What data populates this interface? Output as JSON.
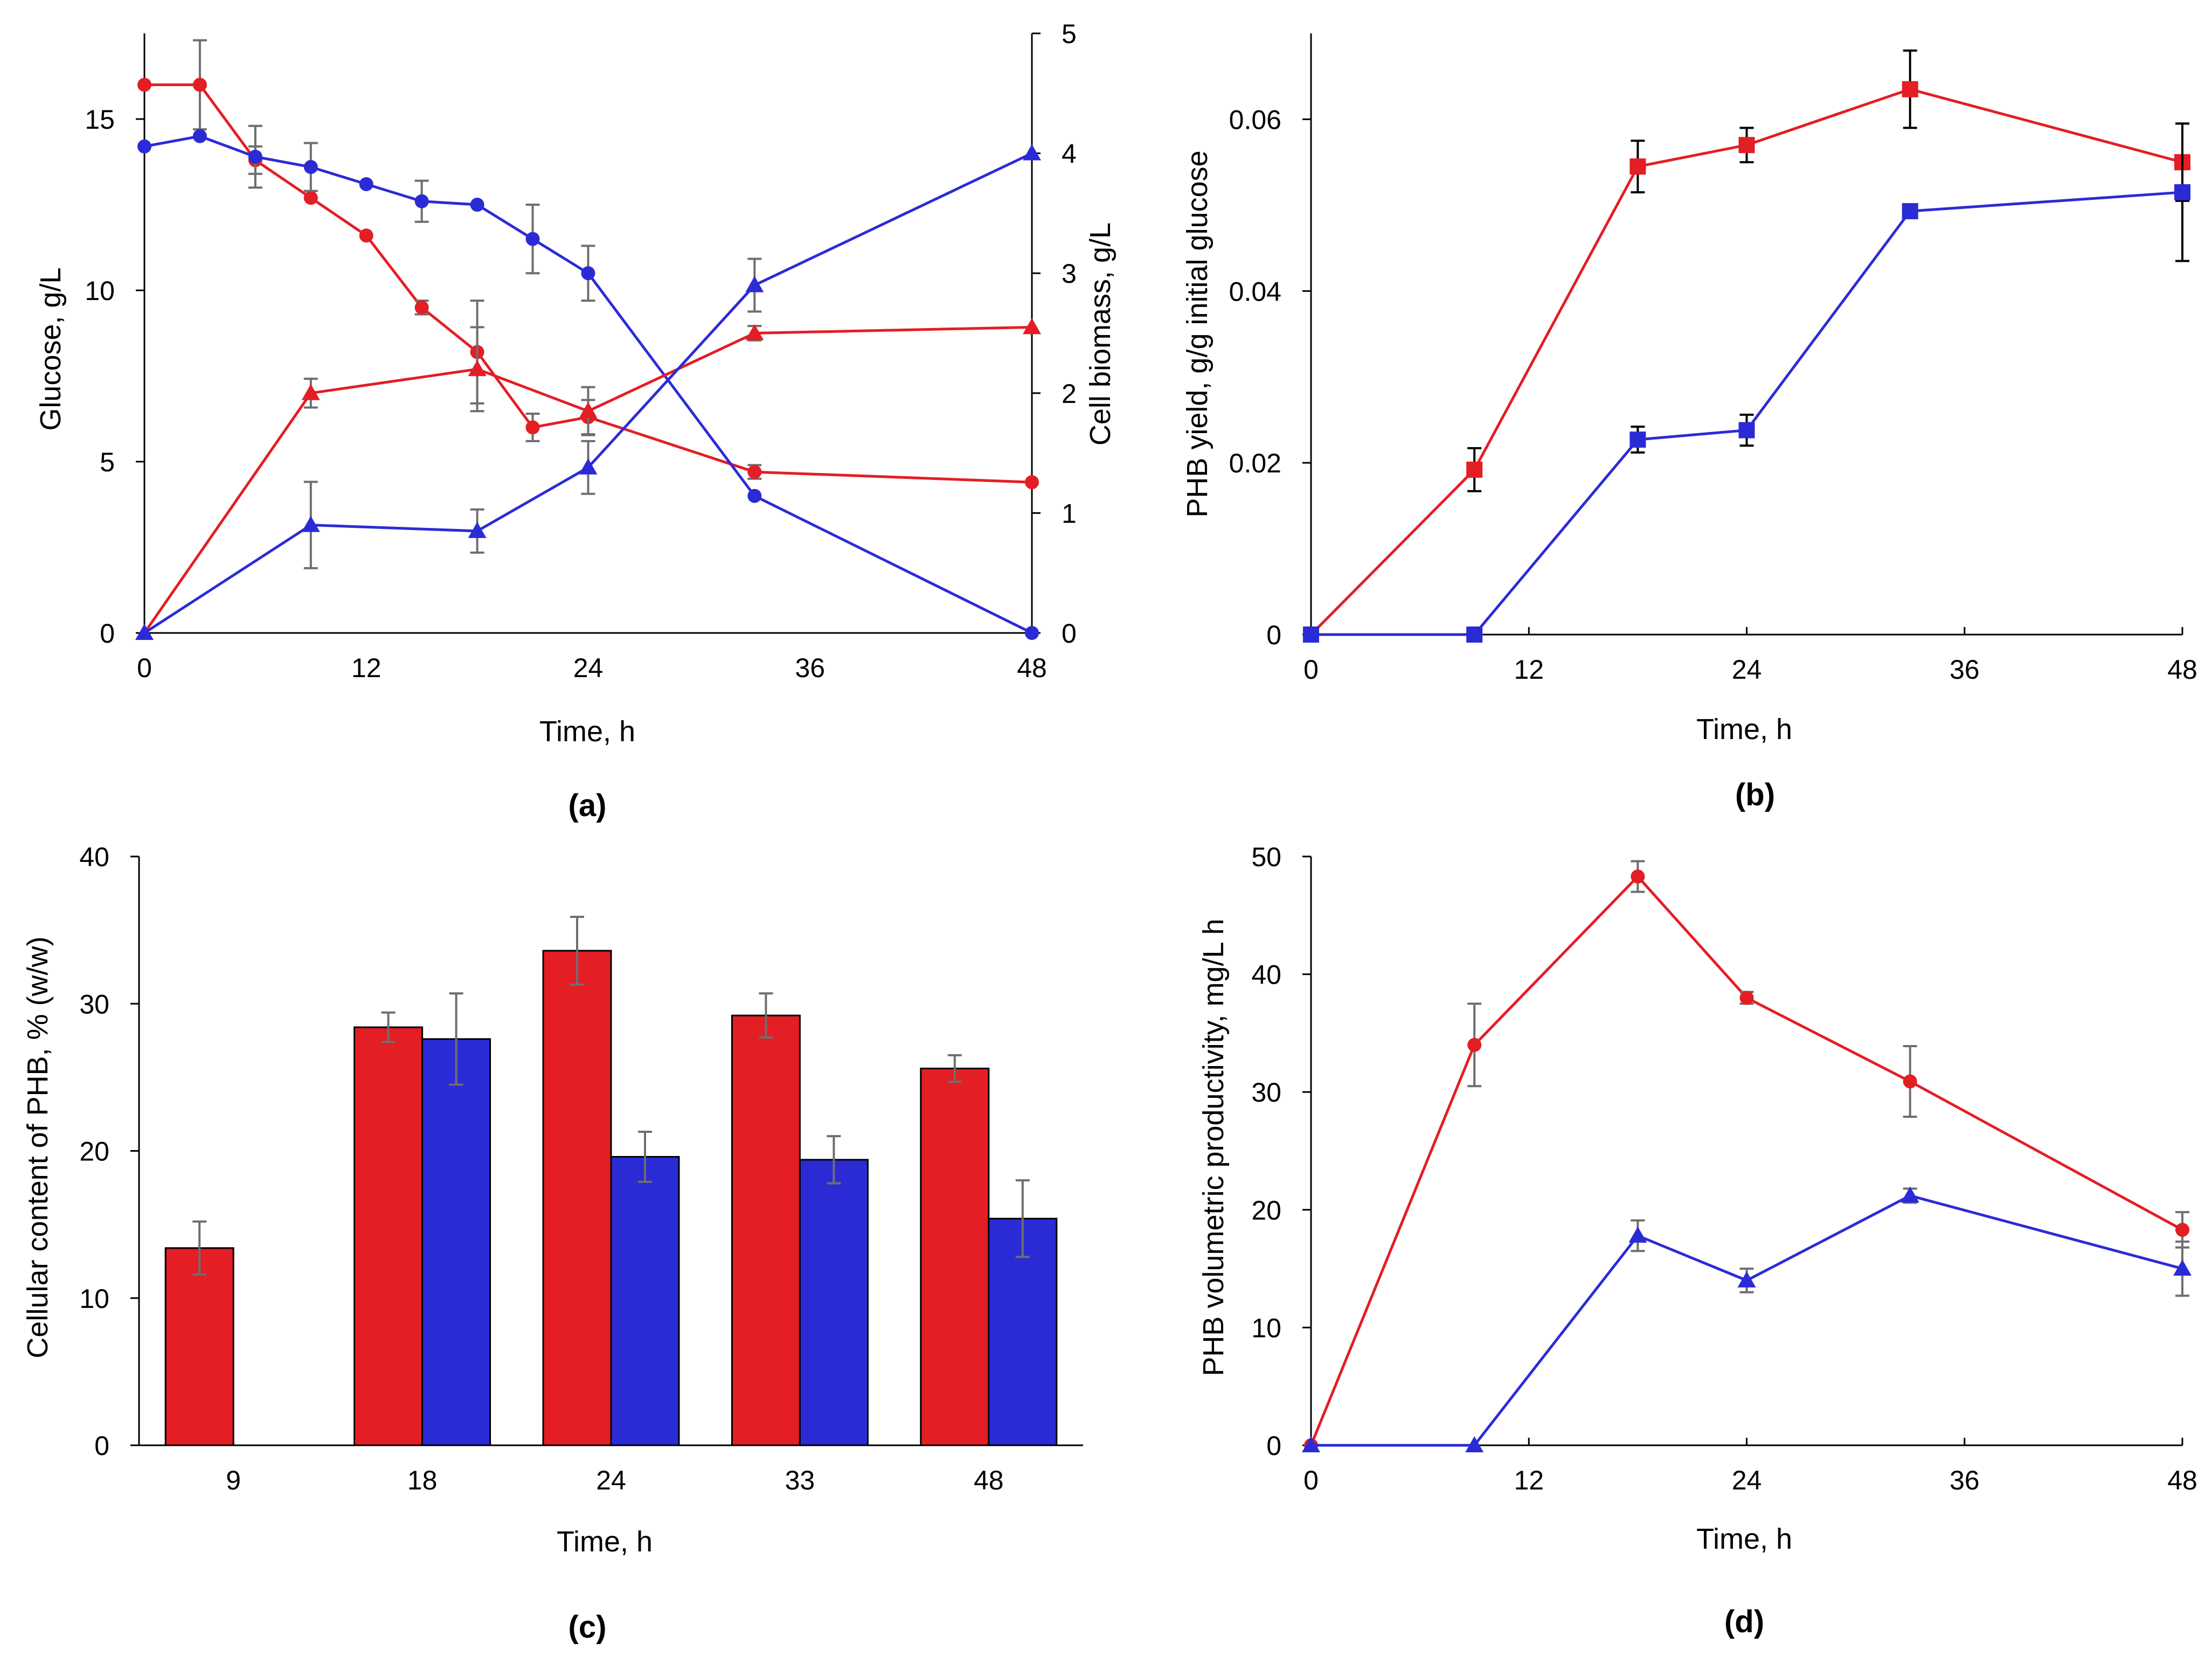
{
  "colors": {
    "red": "#e31e24",
    "blue": "#2b2bd6",
    "axis": "#000000",
    "err": "#6e6e6e"
  },
  "chart_data": [
    {
      "id": "a",
      "type": "line",
      "panel_label": "(a)",
      "xlabel": "Time, h",
      "ylabel": "Glucose, g/L",
      "ylabel2": "Cell biomass,  g/L",
      "xlim": [
        0,
        48
      ],
      "xticks": [
        "0",
        "12",
        "24",
        "36",
        "48"
      ],
      "ylim": [
        0,
        17.5
      ],
      "yticks": [
        "0",
        "5",
        "10",
        "15"
      ],
      "ylim2": [
        0,
        5
      ],
      "yticks2": [
        "0",
        "1",
        "2",
        "3",
        "4",
        "5"
      ],
      "series": [
        {
          "name": "Glucose (red)",
          "color": "red",
          "axis": "left",
          "marker": "circle",
          "x": [
            0,
            3,
            6,
            9,
            12,
            15,
            18,
            21,
            24,
            33,
            48
          ],
          "y": [
            16.0,
            16.0,
            13.8,
            12.7,
            11.6,
            9.5,
            8.2,
            6.0,
            6.3,
            4.7,
            4.4
          ],
          "err": [
            0,
            1.3,
            0.4,
            0,
            0,
            0.2,
            1.5,
            0.4,
            0.5,
            0.2,
            0
          ]
        },
        {
          "name": "Glucose (blue)",
          "color": "blue",
          "axis": "left",
          "marker": "circle",
          "x": [
            0,
            3,
            6,
            9,
            12,
            15,
            18,
            21,
            24,
            33,
            48
          ],
          "y": [
            14.2,
            14.5,
            13.9,
            13.6,
            13.1,
            12.6,
            12.5,
            11.5,
            10.5,
            4.0,
            0
          ],
          "err": [
            0,
            0,
            0.9,
            0.7,
            0,
            0.6,
            0,
            1.0,
            0.8,
            0,
            0
          ]
        },
        {
          "name": "Cell biomass (red)",
          "color": "red",
          "axis": "right",
          "marker": "triangle",
          "x": [
            0,
            9,
            18,
            24,
            33,
            48
          ],
          "y": [
            0,
            2.0,
            2.2,
            1.85,
            2.5,
            2.55
          ],
          "err": [
            0,
            0.12,
            0.35,
            0.2,
            0.06,
            0
          ]
        },
        {
          "name": "Cell biomass (blue)",
          "color": "blue",
          "axis": "right",
          "marker": "triangle",
          "x": [
            0,
            9,
            18,
            24,
            33,
            48
          ],
          "y": [
            0,
            0.9,
            0.85,
            1.38,
            2.9,
            4.0
          ],
          "err": [
            0,
            0.36,
            0.18,
            0.22,
            0.22,
            0
          ]
        }
      ]
    },
    {
      "id": "b",
      "type": "line",
      "panel_label": "(b)",
      "xlabel": "Time, h",
      "ylabel": "PHB yield, g/g initial glucose",
      "xlim": [
        0,
        48
      ],
      "xticks": [
        "0",
        "12",
        "24",
        "36",
        "48"
      ],
      "ylim": [
        0,
        0.07
      ],
      "yticks": [
        "0",
        "0.02",
        "0.04",
        "0.06"
      ],
      "series": [
        {
          "name": "PHB yield (red)",
          "color": "red",
          "marker": "square",
          "x": [
            0,
            9,
            18,
            24,
            33,
            48
          ],
          "y": [
            0,
            0.0192,
            0.0545,
            0.057,
            0.0635,
            0.055
          ],
          "err": [
            0,
            0.0025,
            0.003,
            0.002,
            0.0045,
            0.0045
          ]
        },
        {
          "name": "PHB yield (blue)",
          "color": "blue",
          "marker": "square",
          "x": [
            0,
            9,
            18,
            24,
            33,
            48
          ],
          "y": [
            0,
            0,
            0.0227,
            0.0238,
            0.0493,
            0.0515
          ],
          "err": [
            0,
            0,
            0.0015,
            0.0018,
            0,
            0.008
          ]
        }
      ]
    },
    {
      "id": "c",
      "type": "bar",
      "panel_label": "(c)",
      "xlabel": "Time, h",
      "ylabel": "Cellular content of PHB, % (w/w)",
      "categories": [
        "9",
        "18",
        "24",
        "33",
        "48"
      ],
      "ylim": [
        0,
        40
      ],
      "yticks": [
        "0",
        "10",
        "20",
        "30",
        "40"
      ],
      "series": [
        {
          "name": "PHB content (red)",
          "color": "red",
          "values": [
            13.4,
            28.4,
            33.6,
            29.2,
            25.6
          ],
          "err": [
            1.8,
            1.0,
            2.3,
            1.5,
            0.9
          ]
        },
        {
          "name": "PHB content (blue)",
          "color": "blue",
          "values": [
            null,
            27.6,
            19.6,
            19.4,
            15.4
          ],
          "err": [
            0,
            3.1,
            1.7,
            1.6,
            2.6
          ]
        }
      ]
    },
    {
      "id": "d",
      "type": "line",
      "panel_label": "(d)",
      "xlabel": "Time, h",
      "ylabel": "PHB volumetric productivity, mg/L h",
      "xlim": [
        0,
        48
      ],
      "xticks": [
        "0",
        "12",
        "24",
        "36",
        "48"
      ],
      "ylim": [
        0,
        50
      ],
      "yticks": [
        "0",
        "10",
        "20",
        "30",
        "40",
        "50"
      ],
      "series": [
        {
          "name": "Productivity (red)",
          "color": "red",
          "marker": "circle",
          "x": [
            0,
            9,
            18,
            24,
            33,
            48
          ],
          "y": [
            0,
            34.0,
            48.3,
            38.0,
            30.9,
            18.3
          ],
          "err": [
            0,
            3.5,
            1.3,
            0.5,
            3.0,
            1.5
          ]
        },
        {
          "name": "Productivity (blue)",
          "color": "blue",
          "marker": "triangle",
          "x": [
            0,
            9,
            18,
            24,
            33,
            48
          ],
          "y": [
            0,
            0,
            17.8,
            14.0,
            21.2,
            15.0
          ],
          "err": [
            0,
            0,
            1.3,
            1.0,
            0.6,
            2.3
          ]
        }
      ]
    }
  ]
}
